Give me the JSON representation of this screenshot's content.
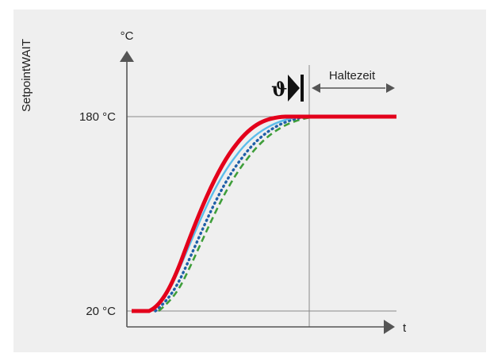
{
  "diagram": {
    "side_label": "SetpointWAIT",
    "y_axis_unit": "°C",
    "x_axis_label": "t",
    "tick_labels": {
      "upper": "180 °C",
      "lower": "20 °C"
    },
    "hold_time_label": "Haltezeit",
    "sensor_symbol": "ϑ",
    "colors": {
      "panel_background": "#efefef",
      "axis": "#555555",
      "guide_line": "#888888",
      "setpoint_curve": "#e3001b",
      "sensor_curve_1": "#5bbcea",
      "sensor_curve_2": "#1f5fa8",
      "sensor_curve_3": "#3f9e3a"
    },
    "curves": [
      {
        "id": "setpoint",
        "color_key": "setpoint_curve",
        "style": "solid-thick"
      },
      {
        "id": "sensor-1",
        "color_key": "sensor_curve_1",
        "style": "solid-thin"
      },
      {
        "id": "sensor-2",
        "color_key": "sensor_curve_2",
        "style": "dotted"
      },
      {
        "id": "sensor-3",
        "color_key": "sensor_curve_3",
        "style": "dashed"
      }
    ]
  }
}
